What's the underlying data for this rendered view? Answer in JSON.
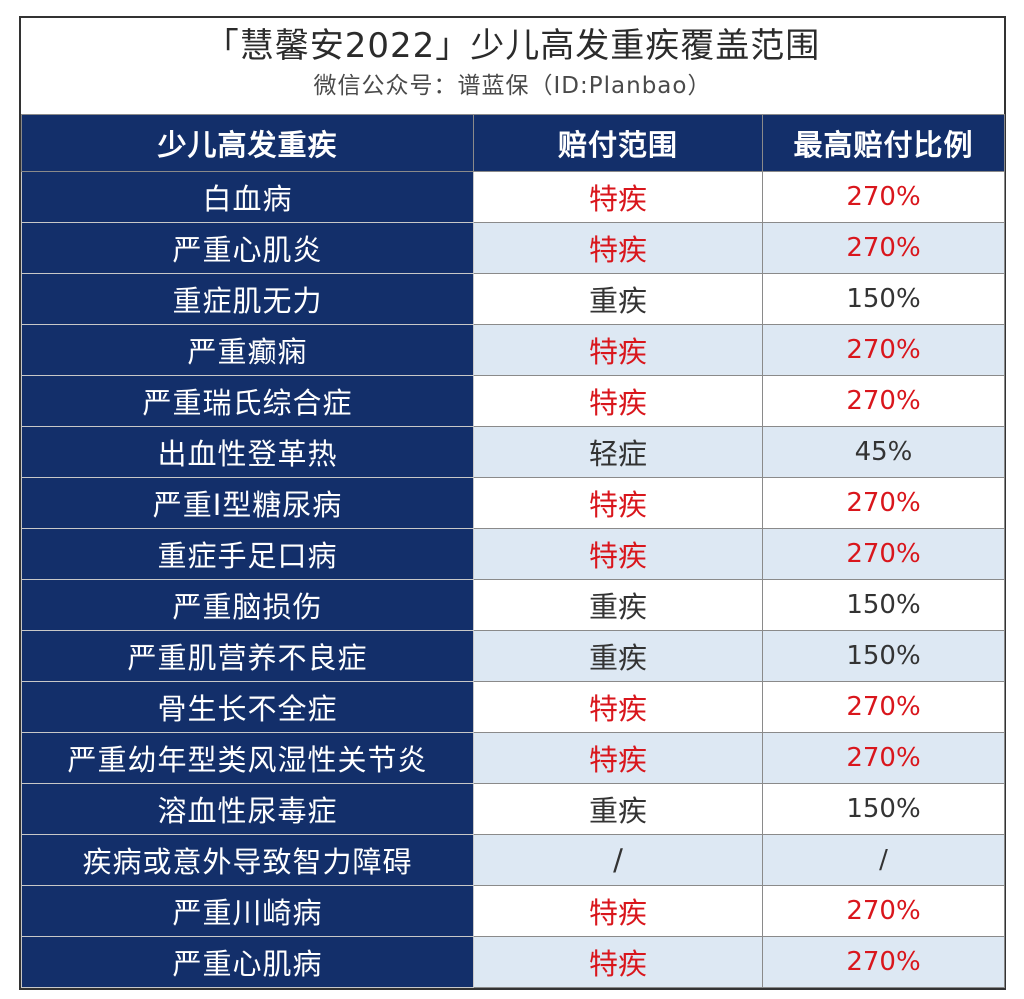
{
  "header": {
    "title": "「慧馨安2022」少儿高发重疾覆盖范围",
    "subtitle": "微信公众号：谱蓝保（ID:Planbao）"
  },
  "table": {
    "columns": [
      "少儿高发重疾",
      "赔付范围",
      "最高赔付比例"
    ],
    "rows": [
      {
        "name": "白血病",
        "scope": "特疾",
        "ratio": "270%",
        "highlight": true
      },
      {
        "name": "严重心肌炎",
        "scope": "特疾",
        "ratio": "270%",
        "highlight": true
      },
      {
        "name": "重症肌无力",
        "scope": "重疾",
        "ratio": "150%",
        "highlight": false
      },
      {
        "name": "严重癫痫",
        "scope": "特疾",
        "ratio": "270%",
        "highlight": true
      },
      {
        "name": "严重瑞氏综合症",
        "scope": "特疾",
        "ratio": "270%",
        "highlight": true
      },
      {
        "name": "出血性登革热",
        "scope": "轻症",
        "ratio": "45%",
        "highlight": false
      },
      {
        "name": "严重I型糖尿病",
        "scope": "特疾",
        "ratio": "270%",
        "highlight": true
      },
      {
        "name": "重症手足口病",
        "scope": "特疾",
        "ratio": "270%",
        "highlight": true
      },
      {
        "name": "严重脑损伤",
        "scope": "重疾",
        "ratio": "150%",
        "highlight": false
      },
      {
        "name": "严重肌营养不良症",
        "scope": "重疾",
        "ratio": "150%",
        "highlight": false
      },
      {
        "name": "骨生长不全症",
        "scope": "特疾",
        "ratio": "270%",
        "highlight": true
      },
      {
        "name": "严重幼年型类风湿性关节炎",
        "scope": "特疾",
        "ratio": "270%",
        "highlight": true
      },
      {
        "name": "溶血性尿毒症",
        "scope": "重疾",
        "ratio": "150%",
        "highlight": false
      },
      {
        "name": "疾病或意外导致智力障碍",
        "scope": "/",
        "ratio": "/",
        "highlight": false
      },
      {
        "name": "严重川崎病",
        "scope": "特疾",
        "ratio": "270%",
        "highlight": true
      },
      {
        "name": "严重心肌病",
        "scope": "特疾",
        "ratio": "270%",
        "highlight": true
      }
    ]
  },
  "colors": {
    "header_bg": "#132f6a",
    "highlight_text": "#d9161c",
    "normal_text": "#333333",
    "alt_row_bg": "#dde8f3"
  }
}
